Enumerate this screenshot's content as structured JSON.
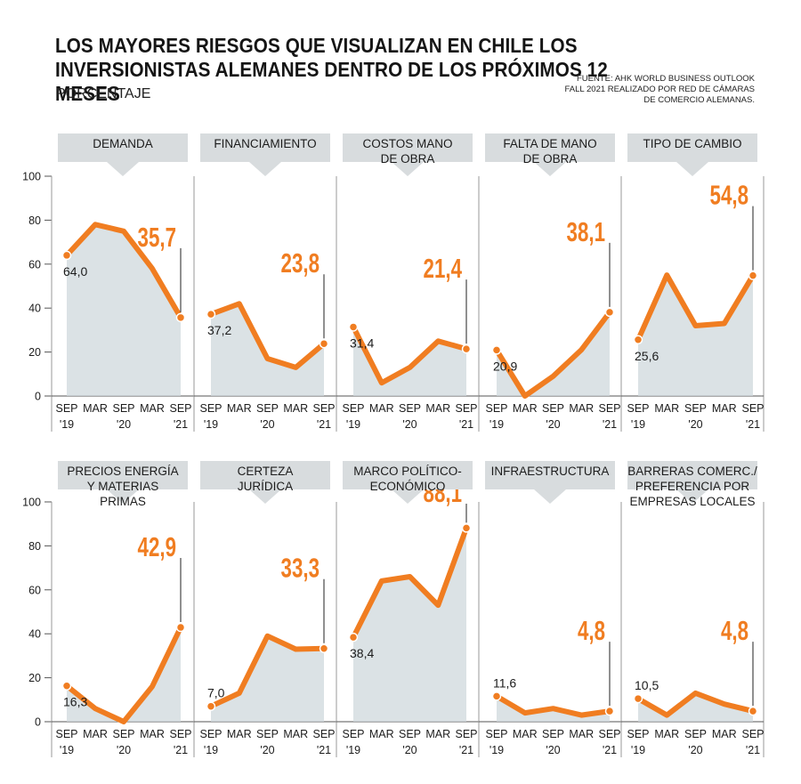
{
  "header": {
    "title": "LOS MAYORES RIESGOS QUE VISUALIZAN EN CHILE LOS INVERSIONISTAS ALEMANES DENTRO DE LOS PRÓXIMOS 12 MESES",
    "subtitle": "PORCENTAJE",
    "source": "FUENTE: AHK WORLD BUSINESS OUTLOOK\nFALL 2021 REALIZADO POR RED DE CÁMARAS\nDE COMERCIO ALEMANAS."
  },
  "colors": {
    "line": "#f07d21",
    "fill": "#cfd8dc",
    "banner": "#d8dcde",
    "grid": "#9a9a9a",
    "end_label": "#f07d21"
  },
  "chart_data": {
    "type": "line",
    "ylim": [
      0,
      100
    ],
    "y_ticks": [
      0,
      20,
      40,
      60,
      80,
      100
    ],
    "x": [
      "SEP '19",
      "MAR '20",
      "SEP '20",
      "MAR '21",
      "SEP '21"
    ],
    "x_tick_top": [
      "SEP",
      "MAR",
      "SEP",
      "MAR",
      "SEP"
    ],
    "x_year_labels": [
      "'19",
      "'20",
      "'21"
    ],
    "series": [
      {
        "name": "DEMANDA",
        "values": [
          64.0,
          78,
          75,
          58,
          35.7
        ],
        "start_label": "64,0",
        "end_label": "35,7"
      },
      {
        "name": "FINANCIAMIENTO",
        "values": [
          37.2,
          42,
          17,
          13,
          23.8
        ],
        "start_label": "37,2",
        "end_label": "23,8"
      },
      {
        "name": "COSTOS MANO\nDE OBRA",
        "values": [
          31.4,
          6,
          13,
          25,
          21.4
        ],
        "start_label": "31,4",
        "end_label": "21,4"
      },
      {
        "name": "FALTA DE MANO\nDE OBRA",
        "values": [
          20.9,
          0,
          9,
          21,
          38.1
        ],
        "start_label": "20,9",
        "end_label": "38,1"
      },
      {
        "name": "TIPO DE CAMBIO",
        "values": [
          25.6,
          55,
          32,
          33,
          54.8
        ],
        "start_label": "25,6",
        "end_label": "54,8"
      },
      {
        "name": "PRECIOS ENERGÍA\nY MATERIAS\nPRIMAS",
        "values": [
          16.3,
          6,
          0,
          16,
          42.9
        ],
        "start_label": "16,3",
        "end_label": "42,9"
      },
      {
        "name": "CERTEZA\nJURÍDICA",
        "values": [
          7.0,
          13,
          39,
          33,
          33.3
        ],
        "start_label": "7,0",
        "end_label": "33,3"
      },
      {
        "name": "MARCO POLÍTICO-\nECONÓMICO",
        "values": [
          38.4,
          64,
          66,
          53,
          88.1
        ],
        "start_label": "38,4",
        "end_label": "88,1"
      },
      {
        "name": "INFRAESTRUCTURA",
        "values": [
          11.6,
          4,
          6,
          3,
          4.8
        ],
        "start_label": "11,6",
        "end_label": "4,8"
      },
      {
        "name": "BARRERAS COMERC./\nPREFERENCIA POR\nEMPRESAS LOCALES",
        "values": [
          10.5,
          3,
          13,
          8,
          4.8
        ],
        "start_label": "10,5",
        "end_label": "4,8"
      }
    ]
  }
}
